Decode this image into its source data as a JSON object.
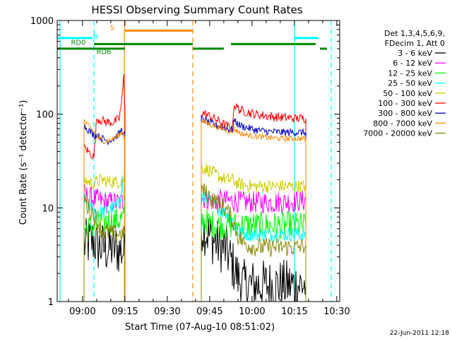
{
  "chart_data": {
    "type": "line",
    "title": "HESSI Observing Summary Count Rates",
    "xlabel": "Start Time (07-Aug-10 08:51:02)",
    "ylabel": "Count Rate (s⁻¹ detector⁻¹)",
    "x_unit": "minutes after 08:51:02",
    "xlim": [
      0,
      100
    ],
    "ylim": [
      1,
      1000
    ],
    "yscale": "log",
    "x_ticks": [
      {
        "x": 8.97,
        "label": "09:00"
      },
      {
        "x": 23.97,
        "label": "09:15"
      },
      {
        "x": 38.97,
        "label": "09:30"
      },
      {
        "x": 53.97,
        "label": "09:45"
      },
      {
        "x": 68.97,
        "label": "10:00"
      },
      {
        "x": 83.97,
        "label": "10:15"
      },
      {
        "x": 98.97,
        "label": "10:30"
      }
    ],
    "y_ticks": [
      {
        "y": 1,
        "label": "1"
      },
      {
        "y": 10,
        "label": "10"
      },
      {
        "y": 100,
        "label": "100"
      },
      {
        "y": 1000,
        "label": "1000"
      }
    ],
    "legend": {
      "placement": "right",
      "header": [
        "Det 1,3,4,5,6,9,",
        "FDecim 1, Att 0"
      ]
    },
    "series": [
      {
        "name": "3 - 6 keV",
        "color": "#000000",
        "segments": [
          [
            [
              9.5,
              4
            ],
            [
              13,
              4.5
            ],
            [
              14,
              3.8
            ],
            [
              16,
              3.8
            ],
            [
              18,
              3.6
            ],
            [
              20,
              3.8
            ],
            [
              22,
              3.5
            ],
            [
              24,
              3.5
            ]
          ],
          [
            [
              51,
              6.5
            ],
            [
              54,
              5
            ],
            [
              57,
              4
            ],
            [
              60,
              3.5
            ],
            [
              62,
              2.5
            ],
            [
              64,
              1.8
            ],
            [
              66,
              1.5
            ],
            [
              70,
              1.5
            ],
            [
              75,
              1.5
            ],
            [
              80,
              1.5
            ],
            [
              85,
              1.5
            ],
            [
              88,
              1.5
            ]
          ]
        ],
        "noise": 0.28
      },
      {
        "name": "6 - 12 keV",
        "color": "#ff00ff",
        "segments": [
          [
            [
              9.5,
              14
            ],
            [
              11,
              13
            ],
            [
              13,
              12.5
            ],
            [
              15,
              12
            ],
            [
              17,
              11.5
            ],
            [
              20,
              11.5
            ],
            [
              22,
              11.5
            ],
            [
              24,
              11.5
            ]
          ],
          [
            [
              51,
              13
            ],
            [
              53,
              12.5
            ],
            [
              55,
              12
            ],
            [
              58,
              12
            ],
            [
              62,
              11.8
            ],
            [
              66,
              11.5
            ],
            [
              70,
              11.5
            ],
            [
              75,
              11.5
            ],
            [
              80,
              11.5
            ],
            [
              85,
              11.8
            ],
            [
              88,
              12
            ]
          ]
        ],
        "noise": 0.12
      },
      {
        "name": "12 - 25 keV",
        "color": "#00ff00",
        "segments": [
          [
            [
              9.5,
              6
            ],
            [
              11,
              6
            ],
            [
              13,
              6.5
            ],
            [
              15,
              7
            ],
            [
              18,
              7.2
            ],
            [
              20,
              7.2
            ],
            [
              22,
              7.5
            ],
            [
              24,
              8
            ]
          ],
          [
            [
              51,
              7.5
            ],
            [
              53,
              7
            ],
            [
              55,
              6.8
            ],
            [
              58,
              6.5
            ],
            [
              62,
              6.5
            ],
            [
              66,
              6.5
            ],
            [
              70,
              6.5
            ],
            [
              75,
              6.5
            ],
            [
              80,
              6.5
            ],
            [
              85,
              6.5
            ],
            [
              88,
              6.5
            ]
          ]
        ],
        "noise": 0.15
      },
      {
        "name": "25 - 50 keV",
        "color": "#00ffff",
        "segments": [
          [
            [
              9.5,
              13
            ],
            [
              11,
              11
            ],
            [
              13,
              9.5
            ],
            [
              14,
              9
            ],
            [
              16,
              9
            ],
            [
              18,
              9.5
            ],
            [
              20,
              10
            ],
            [
              22,
              11
            ],
            [
              23,
              20
            ],
            [
              23.5,
              12
            ],
            [
              24,
              12
            ]
          ],
          [
            [
              51,
              13
            ],
            [
              54,
              12
            ],
            [
              57,
              10
            ],
            [
              60,
              8.5
            ],
            [
              62,
              7.5
            ],
            [
              64,
              5.5
            ],
            [
              67,
              5.3
            ],
            [
              70,
              5.2
            ],
            [
              75,
              5.2
            ],
            [
              80,
              5.2
            ],
            [
              85,
              5.3
            ],
            [
              88,
              5.3
            ]
          ]
        ],
        "noise": 0.08
      },
      {
        "name": "50 - 100 keV",
        "color": "#cccc00",
        "segments": [
          [
            [
              9.5,
              20
            ],
            [
              11,
              19
            ],
            [
              13,
              18
            ],
            [
              14,
              19
            ],
            [
              16,
              20
            ],
            [
              18,
              19
            ],
            [
              20,
              19
            ],
            [
              22,
              19
            ],
            [
              23,
              20
            ],
            [
              24,
              19
            ]
          ],
          [
            [
              51,
              27
            ],
            [
              54,
              25
            ],
            [
              57,
              22
            ],
            [
              60,
              20
            ],
            [
              62,
              20
            ],
            [
              64,
              18
            ],
            [
              67,
              17.5
            ],
            [
              70,
              17
            ],
            [
              75,
              17
            ],
            [
              80,
              17
            ],
            [
              85,
              17
            ],
            [
              88,
              17
            ]
          ]
        ],
        "noise": 0.07
      },
      {
        "name": "100 - 300 keV",
        "color": "#ff0000",
        "segments": [
          [
            [
              9.5,
              45
            ],
            [
              11,
              40
            ],
            [
              13,
              35
            ],
            [
              14,
              90
            ],
            [
              16,
              85
            ],
            [
              18,
              82
            ],
            [
              20,
              82
            ],
            [
              22,
              90
            ],
            [
              23,
              150
            ],
            [
              23.5,
              250
            ],
            [
              24,
              110
            ]
          ],
          [
            [
              51,
              105
            ],
            [
              54,
              95
            ],
            [
              57,
              85
            ],
            [
              60,
              75
            ],
            [
              62,
              70
            ],
            [
              62.5,
              125
            ],
            [
              65,
              110
            ],
            [
              70,
              100
            ],
            [
              75,
              95
            ],
            [
              80,
              92
            ],
            [
              85,
              90
            ],
            [
              88,
              90
            ]
          ]
        ],
        "noise": 0.05
      },
      {
        "name": "300 - 800 keV",
        "color": "#0000cc",
        "segments": [
          [
            [
              9.5,
              75
            ],
            [
              11,
              68
            ],
            [
              13,
              60
            ],
            [
              14,
              60
            ],
            [
              16,
              55
            ],
            [
              18,
              52
            ],
            [
              20,
              55
            ],
            [
              22,
              62
            ],
            [
              23,
              70
            ],
            [
              23.5,
              60
            ],
            [
              24,
              60
            ]
          ],
          [
            [
              51,
              90
            ],
            [
              54,
              80
            ],
            [
              57,
              75
            ],
            [
              60,
              70
            ],
            [
              62,
              68
            ],
            [
              62.5,
              85
            ],
            [
              65,
              75
            ],
            [
              70,
              68
            ],
            [
              75,
              65
            ],
            [
              80,
              64
            ],
            [
              85,
              64
            ],
            [
              88,
              64
            ]
          ]
        ],
        "noise": 0.04
      },
      {
        "name": "800 - 7000 keV",
        "color": "#ff8800",
        "segments": [
          [
            [
              9.5,
              85
            ],
            [
              11,
              75
            ],
            [
              13,
              65
            ],
            [
              14,
              58
            ],
            [
              16,
              52
            ],
            [
              18,
              52
            ],
            [
              20,
              55
            ],
            [
              22,
              60
            ],
            [
              23,
              65
            ],
            [
              23.5,
              58
            ],
            [
              24,
              58
            ]
          ],
          [
            [
              51,
              85
            ],
            [
              54,
              78
            ],
            [
              57,
              72
            ],
            [
              60,
              68
            ],
            [
              62,
              64
            ],
            [
              62.5,
              70
            ],
            [
              65,
              62
            ],
            [
              70,
              58
            ],
            [
              75,
              56
            ],
            [
              80,
              55
            ],
            [
              85,
              55
            ],
            [
              88,
              55
            ]
          ]
        ],
        "noise": 0.03
      },
      {
        "name": "7000 - 20000 keV",
        "color": "#888800",
        "segments": [
          [
            [
              9.5,
              13
            ],
            [
              11,
              10
            ],
            [
              13,
              8.5
            ],
            [
              14,
              7.5
            ],
            [
              16,
              5.5
            ],
            [
              18,
              5.5
            ],
            [
              20,
              5.3
            ],
            [
              22,
              5.3
            ],
            [
              24,
              5.2
            ]
          ],
          [
            [
              51,
              16
            ],
            [
              54,
              13
            ],
            [
              57,
              11
            ],
            [
              60,
              9.5
            ],
            [
              62,
              7.5
            ],
            [
              64,
              5
            ],
            [
              66,
              4.2
            ],
            [
              70,
              3.8
            ],
            [
              75,
              3.8
            ],
            [
              80,
              3.8
            ],
            [
              85,
              3.8
            ],
            [
              88,
              4
            ]
          ]
        ],
        "noise": 0.1
      }
    ],
    "state_bars": [
      {
        "name": "N",
        "label": "N",
        "color": "#00ffff",
        "value": 650,
        "ranges": [
          [
            0,
            12.5
          ],
          [
            84,
            92.5
          ]
        ]
      },
      {
        "name": "S",
        "label": "S",
        "color": "#ff8800",
        "value": 780,
        "ranges": [
          [
            24,
            48
          ]
        ]
      },
      {
        "name": "RD0",
        "label": "RD0",
        "color": "#008800",
        "value": 560,
        "ranges": [
          [
            13,
            48
          ],
          [
            61.5,
            91.5
          ]
        ]
      },
      {
        "name": "RD6",
        "label": "RD6",
        "color": "#008800",
        "value": 500,
        "ranges": [
          [
            0,
            24
          ],
          [
            48,
            59
          ],
          [
            93,
            95.5
          ]
        ]
      }
    ],
    "vertical_markers": [
      {
        "x": 1,
        "color": "#00ffff",
        "style": "solid"
      },
      {
        "x": 13,
        "color": "#00ffff",
        "style": "dashed"
      },
      {
        "x": 23.8,
        "color": "#ff8800",
        "style": "solid"
      },
      {
        "x": 48,
        "color": "#ff8800",
        "style": "dashed"
      },
      {
        "x": 84,
        "color": "#00ffff",
        "style": "solid"
      },
      {
        "x": 97,
        "color": "#00ffff",
        "style": "dashed"
      }
    ],
    "footer": "22-Jun-2011 12:18"
  }
}
